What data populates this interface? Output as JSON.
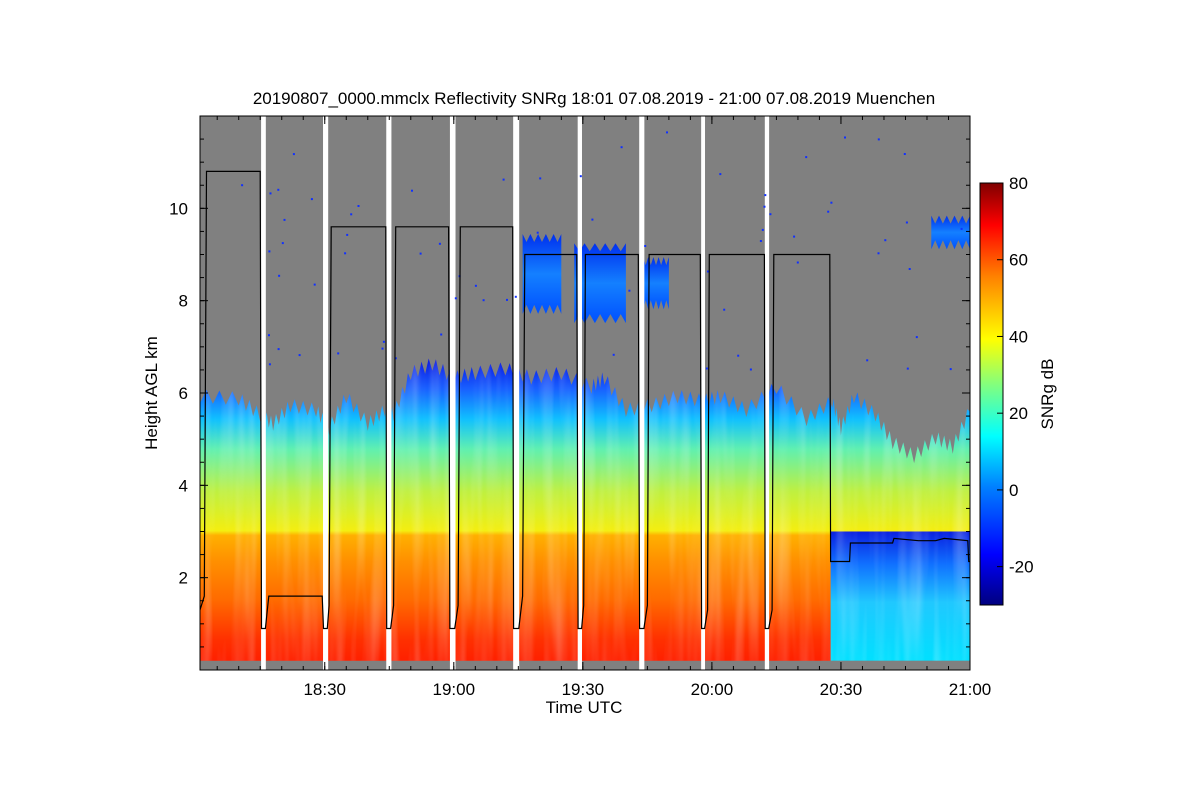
{
  "chart_data": {
    "type": "heatmap",
    "title": "20190807_0000.mmclx Reflectivity SNRg   18:01 07.08.2019 - 21:00 07.08.2019 Muenchen",
    "xlabel": "Time UTC",
    "ylabel": "Height AGL km",
    "x_ticks": [
      "18:30",
      "19:00",
      "19:30",
      "20:00",
      "20:30",
      "21:00"
    ],
    "x_tick_values_min": [
      30,
      60,
      90,
      120,
      150,
      180
    ],
    "y_ticks": [
      "2",
      "4",
      "6",
      "8",
      "10"
    ],
    "y_tick_values": [
      2,
      4,
      6,
      8,
      10
    ],
    "xlim_min": [
      1,
      180
    ],
    "ylim_km": [
      0,
      12
    ],
    "colorbar": {
      "label": "SNRg dB",
      "range": [
        -30,
        80
      ],
      "ticks": [
        "-20",
        "0",
        "20",
        "40",
        "60",
        "80"
      ],
      "tick_values": [
        -20,
        0,
        20,
        40,
        60,
        80
      ],
      "colors": [
        "#00007f",
        "#0000ff",
        "#0080ff",
        "#00ffff",
        "#80ff80",
        "#ffff00",
        "#ff8000",
        "#ff0000",
        "#7f0000"
      ]
    },
    "background_color": "#808080",
    "gaps_min": [
      [
        15.2,
        16.3
      ],
      [
        29.6,
        30.8
      ],
      [
        44.3,
        45.5
      ],
      [
        59.1,
        60.4
      ],
      [
        73.8,
        75.2
      ],
      [
        88.8,
        89.8
      ],
      [
        103.1,
        104.3
      ],
      [
        117.5,
        118.4
      ],
      [
        132.3,
        133.3
      ]
    ],
    "cloud_top_km": [
      [
        1,
        5.9
      ],
      [
        10,
        5.85
      ],
      [
        15,
        5.5
      ],
      [
        18,
        5.3
      ],
      [
        22,
        5.7
      ],
      [
        28,
        5.6
      ],
      [
        31,
        5.2
      ],
      [
        35,
        5.9
      ],
      [
        40,
        5.3
      ],
      [
        44,
        5.6
      ],
      [
        46,
        5.5
      ],
      [
        50,
        6.4
      ],
      [
        55,
        6.6
      ],
      [
        60,
        6.3
      ],
      [
        65,
        6.4
      ],
      [
        72,
        6.5
      ],
      [
        78,
        6.3
      ],
      [
        85,
        6.4
      ],
      [
        92,
        6.1
      ],
      [
        95,
        6.3
      ],
      [
        100,
        5.6
      ],
      [
        106,
        5.7
      ],
      [
        112,
        5.9
      ],
      [
        118,
        5.8
      ],
      [
        122,
        5.9
      ],
      [
        128,
        5.6
      ],
      [
        135,
        6.1
      ],
      [
        142,
        5.4
      ],
      [
        148,
        5.8
      ],
      [
        150,
        5.2
      ],
      [
        153,
        5.9
      ],
      [
        158,
        5.5
      ],
      [
        162,
        4.9
      ],
      [
        167,
        4.6
      ],
      [
        172,
        5.0
      ],
      [
        176,
        4.8
      ],
      [
        180,
        5.6
      ]
    ],
    "upper_cloud_patches": [
      {
        "t0": 76,
        "t1": 85,
        "base_km": 7.8,
        "top_km": 9.4
      },
      {
        "t0": 88,
        "t1": 100,
        "base_km": 7.6,
        "top_km": 9.2
      },
      {
        "t0": 104,
        "t1": 110,
        "base_km": 7.9,
        "top_km": 8.9
      },
      {
        "t0": 171,
        "t1": 180,
        "base_km": 9.2,
        "top_km": 9.8
      }
    ],
    "melting_layer_km": 2.9,
    "scan_height_profile": [
      [
        1,
        1.3
      ],
      [
        2,
        1.6
      ],
      [
        2.5,
        10.8
      ],
      [
        15,
        10.8
      ],
      [
        15.3,
        0.9
      ],
      [
        16.2,
        0.9
      ],
      [
        17,
        1.6
      ],
      [
        29.4,
        1.6
      ],
      [
        29.7,
        0.9
      ],
      [
        30.6,
        0.9
      ],
      [
        31,
        1.4
      ],
      [
        31.5,
        9.6
      ],
      [
        44.2,
        9.6
      ],
      [
        44.4,
        0.9
      ],
      [
        45.3,
        0.9
      ],
      [
        46,
        1.4
      ],
      [
        46.5,
        9.6
      ],
      [
        58.8,
        9.6
      ],
      [
        59.1,
        0.9
      ],
      [
        60.2,
        0.9
      ],
      [
        61,
        1.4
      ],
      [
        61.5,
        9.6
      ],
      [
        73.7,
        9.6
      ],
      [
        73.9,
        0.9
      ],
      [
        75.1,
        0.9
      ],
      [
        76,
        1.6
      ],
      [
        76.5,
        9.0
      ],
      [
        88.6,
        9.0
      ],
      [
        88.9,
        0.9
      ],
      [
        89.7,
        0.9
      ],
      [
        90.2,
        1.4
      ],
      [
        90.6,
        9.0
      ],
      [
        102.9,
        9.0
      ],
      [
        103.2,
        0.9
      ],
      [
        104.2,
        0.9
      ],
      [
        105,
        1.4
      ],
      [
        105.4,
        9.0
      ],
      [
        117.3,
        9.0
      ],
      [
        117.6,
        0.9
      ],
      [
        118.3,
        0.9
      ],
      [
        119,
        1.3
      ],
      [
        119.4,
        9.0
      ],
      [
        132.2,
        9.0
      ],
      [
        132.4,
        0.9
      ],
      [
        133.2,
        0.9
      ],
      [
        134,
        1.3
      ],
      [
        134.4,
        9.0
      ],
      [
        147.4,
        9.0
      ],
      [
        147.6,
        2.35
      ],
      [
        152,
        2.35
      ],
      [
        152.2,
        2.75
      ],
      [
        162,
        2.75
      ],
      [
        162.3,
        2.85
      ],
      [
        168,
        2.8
      ],
      [
        172,
        2.8
      ],
      [
        174,
        2.85
      ],
      [
        179.5,
        2.8
      ],
      [
        179.7,
        2.35
      ],
      [
        180,
        2.35
      ]
    ]
  }
}
